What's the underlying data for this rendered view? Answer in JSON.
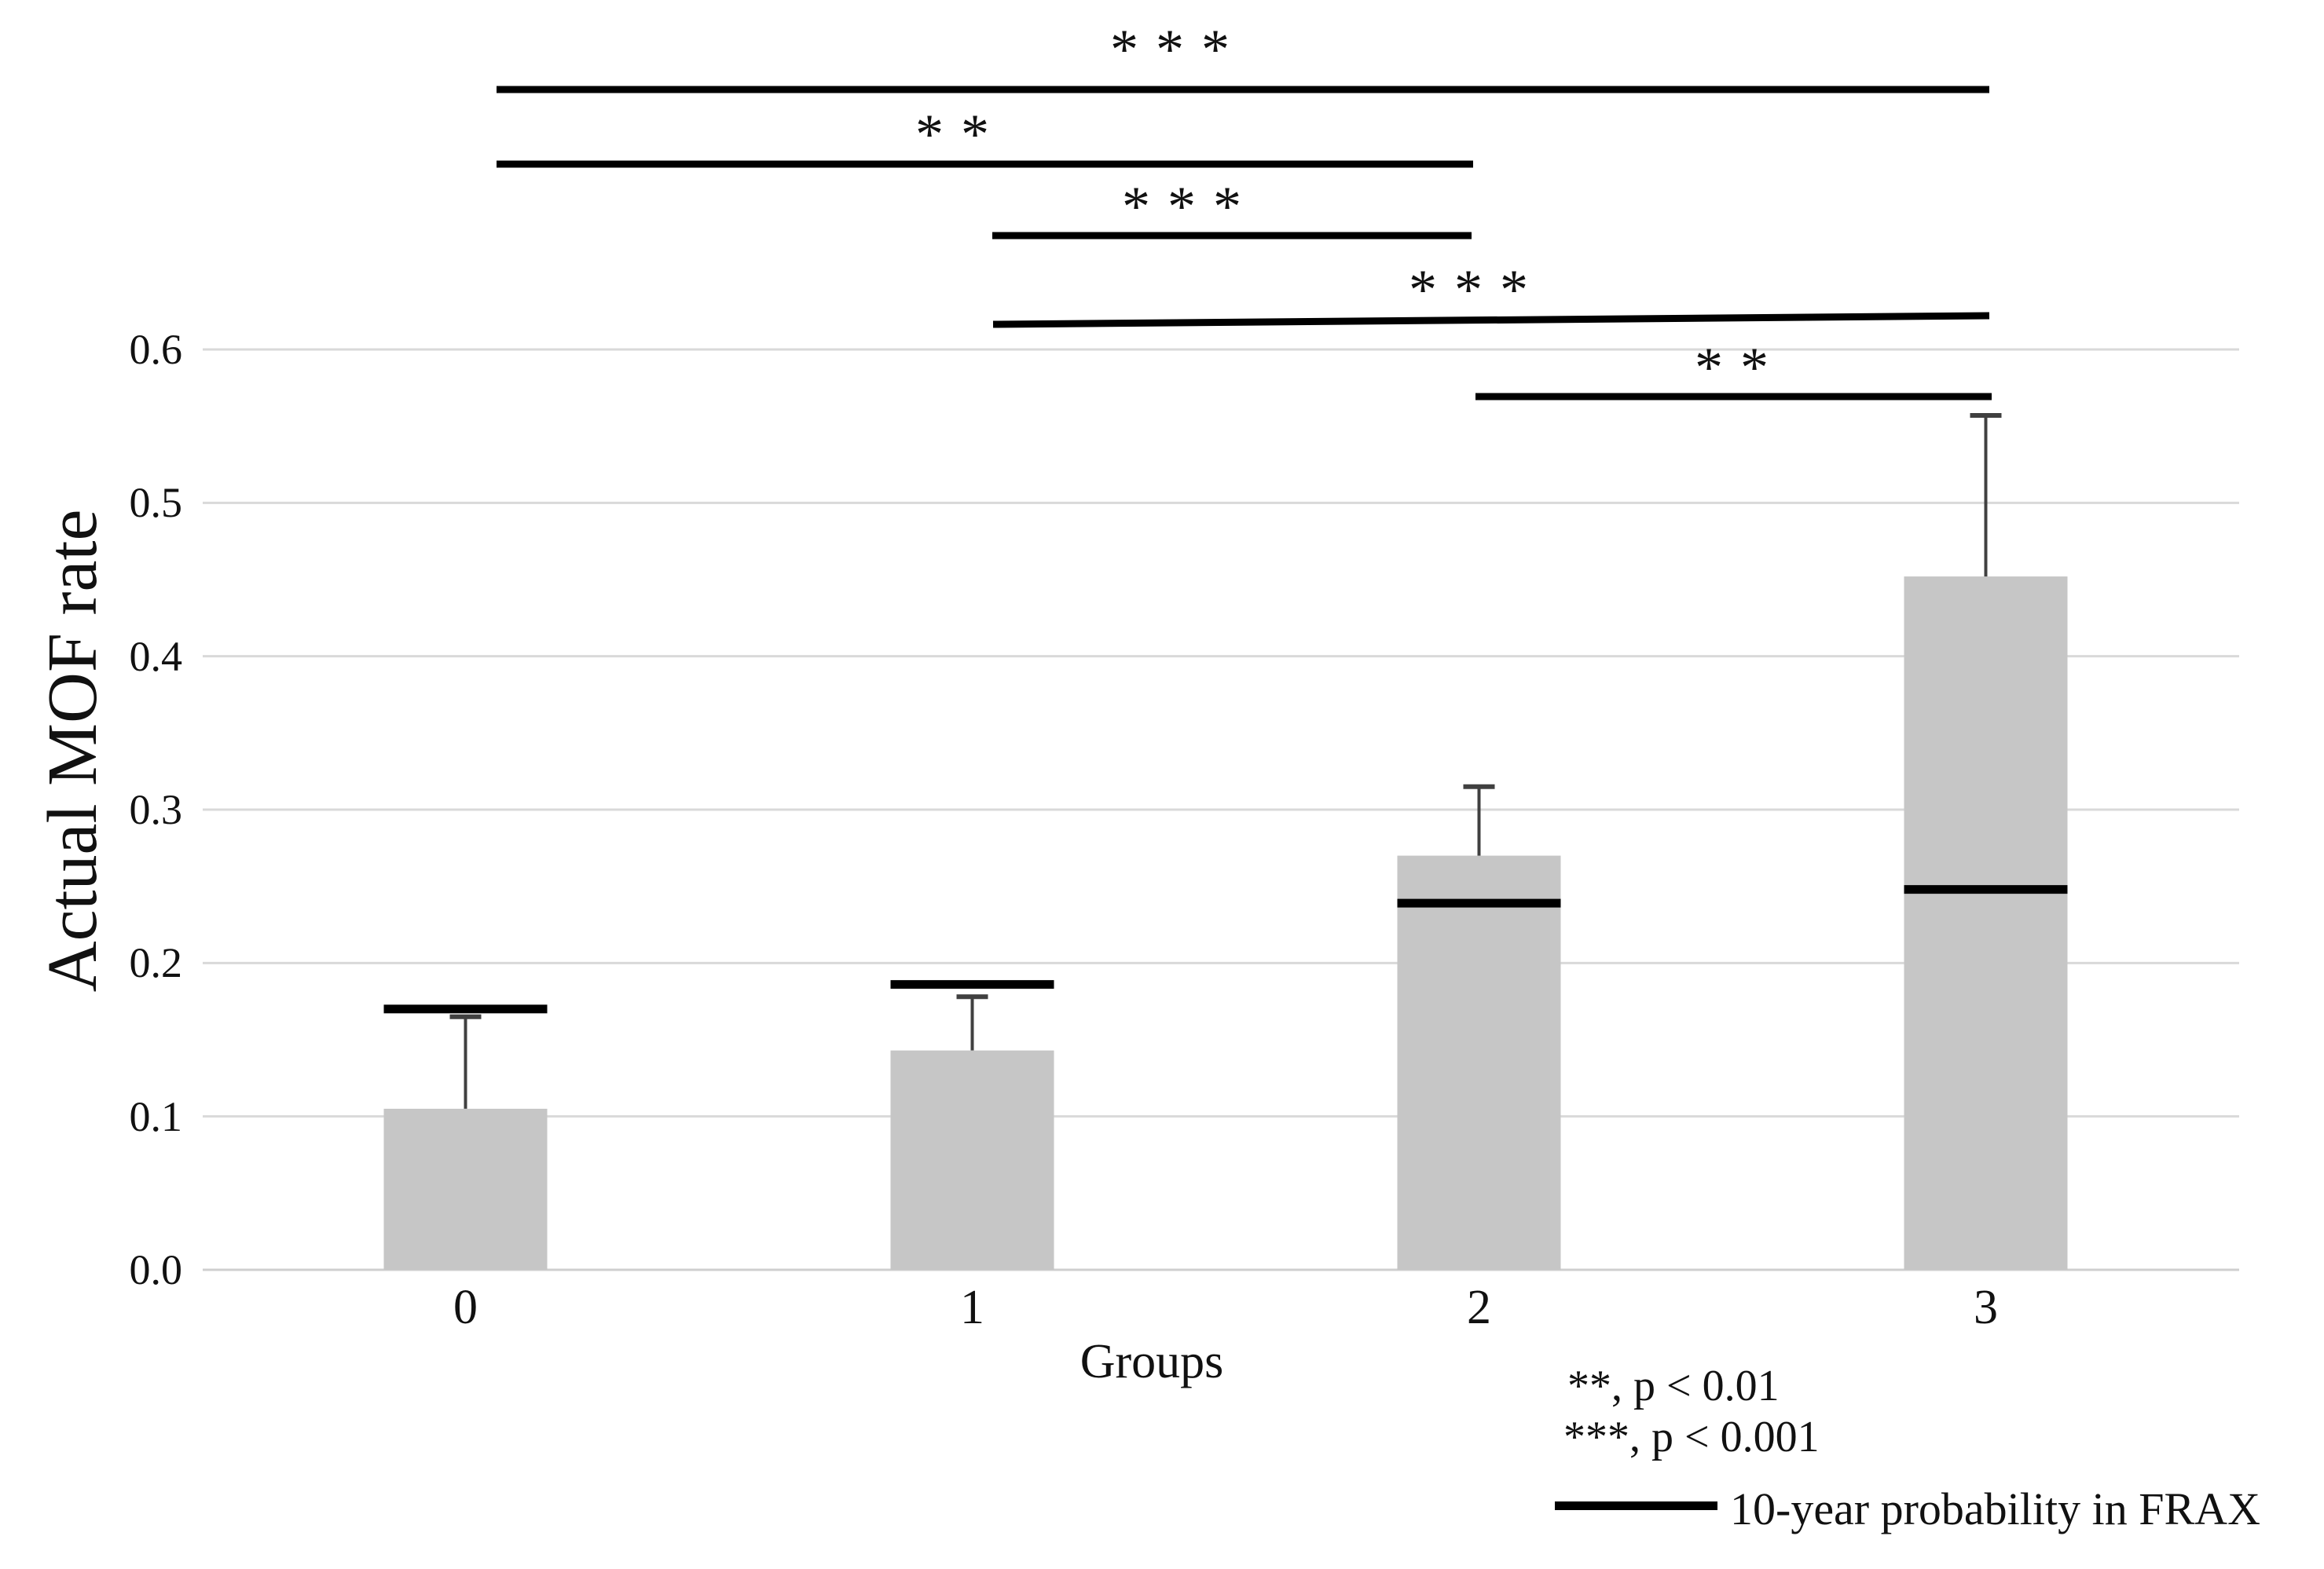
{
  "chart_data": {
    "type": "bar",
    "title": "",
    "xlabel": "Groups",
    "ylabel": "Actual MOF rate",
    "categories": [
      "0",
      "1",
      "2",
      "3"
    ],
    "ylim": [
      0,
      0.6
    ],
    "ytick_step": 0.1,
    "ytick_labels": [
      "0.0",
      "0.1",
      "0.2",
      "0.3",
      "0.4",
      "0.5",
      "0.6"
    ],
    "grid": true,
    "legend_position": "bottom-right",
    "series": [
      {
        "name": "Actual MOF rate (bars)",
        "values": [
          0.105,
          0.143,
          0.27,
          0.452
        ]
      },
      {
        "name": "10-year probability in FRAX",
        "values": [
          0.17,
          0.186,
          0.239,
          0.248
        ]
      }
    ],
    "error_upper": [
      0.06,
      0.035,
      0.045,
      0.105
    ],
    "significance_brackets": [
      {
        "pair": "0 vs 3",
        "stars": "***",
        "x1": 632,
        "y1": 114,
        "x2": 2532,
        "y2": 114,
        "label_x": 1490,
        "label_y": 52
      },
      {
        "pair": "0 vs 2",
        "stars": "**",
        "x1": 632,
        "y1": 209,
        "x2": 1875,
        "y2": 209,
        "label_x": 1213,
        "label_y": 160
      },
      {
        "pair": "1 vs 2",
        "stars": "***",
        "x1": 1263,
        "y1": 300,
        "x2": 1873,
        "y2": 300,
        "label_x": 1505,
        "label_y": 252
      },
      {
        "pair": "1 vs 3",
        "stars": "***",
        "x1": 1264,
        "y1": 413,
        "x2": 2532,
        "y2": 402,
        "label_x": 1870,
        "label_y": 358
      },
      {
        "pair": "2 vs 3",
        "stars": "**",
        "x1": 1878,
        "y1": 505,
        "x2": 2535,
        "y2": 505,
        "label_x": 2205,
        "label_y": 457
      }
    ]
  },
  "legend": {
    "p01": "**, p < 0.01",
    "p001": "***, p < 0.001",
    "frax_label": "10-year probability in FRAX"
  },
  "colors": {
    "bar_fill": "#c6c6c6",
    "gridline": "#d9d9d9",
    "axis_line": "#cfcfcf",
    "error_bar": "#404040",
    "frax_line": "#000000",
    "bracket": "#000000",
    "text": "#111111"
  }
}
